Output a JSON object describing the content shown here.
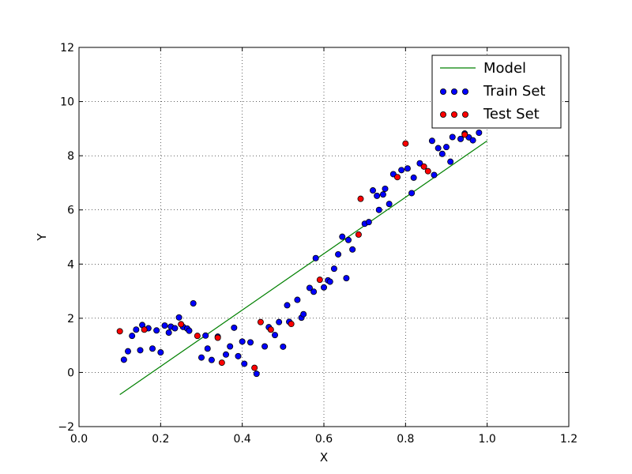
{
  "chart_data": {
    "type": "scatter",
    "xlabel": "X",
    "ylabel": "Y",
    "xlim": [
      0.0,
      1.2
    ],
    "ylim": [
      -2,
      12
    ],
    "x_ticks": [
      0.0,
      0.2,
      0.4,
      0.6,
      0.8,
      1.0,
      1.2
    ],
    "y_ticks": [
      -2,
      0,
      2,
      4,
      6,
      8,
      10,
      12
    ],
    "x_tick_labels": [
      "0.0",
      "0.2",
      "0.4",
      "0.6",
      "0.8",
      "1.0",
      "1.2"
    ],
    "y_tick_labels": [
      "−2",
      "0",
      "2",
      "4",
      "6",
      "8",
      "10",
      "12"
    ],
    "grid": true,
    "legend_position": "top-right",
    "series": [
      {
        "name": "Model",
        "kind": "line",
        "color": "#008000",
        "points": [
          [
            0.1,
            -0.82
          ],
          [
            1.0,
            8.55
          ]
        ]
      },
      {
        "name": "Train Set",
        "kind": "scatter",
        "color": "#0000ff",
        "points": [
          [
            0.11,
            0.47
          ],
          [
            0.12,
            0.78
          ],
          [
            0.13,
            1.35
          ],
          [
            0.14,
            1.58
          ],
          [
            0.15,
            0.82
          ],
          [
            0.155,
            1.75
          ],
          [
            0.17,
            1.63
          ],
          [
            0.18,
            0.88
          ],
          [
            0.19,
            1.55
          ],
          [
            0.2,
            0.74
          ],
          [
            0.21,
            1.73
          ],
          [
            0.22,
            1.47
          ],
          [
            0.225,
            1.69
          ],
          [
            0.235,
            1.63
          ],
          [
            0.245,
            2.03
          ],
          [
            0.255,
            1.68
          ],
          [
            0.265,
            1.62
          ],
          [
            0.27,
            1.54
          ],
          [
            0.28,
            2.55
          ],
          [
            0.3,
            0.55
          ],
          [
            0.31,
            1.36
          ],
          [
            0.315,
            0.88
          ],
          [
            0.325,
            0.46
          ],
          [
            0.34,
            1.32
          ],
          [
            0.36,
            0.66
          ],
          [
            0.37,
            0.96
          ],
          [
            0.38,
            1.65
          ],
          [
            0.39,
            0.6
          ],
          [
            0.4,
            1.14
          ],
          [
            0.405,
            0.32
          ],
          [
            0.42,
            1.11
          ],
          [
            0.435,
            -0.05
          ],
          [
            0.455,
            0.96
          ],
          [
            0.465,
            1.67
          ],
          [
            0.48,
            1.38
          ],
          [
            0.49,
            1.86
          ],
          [
            0.5,
            0.95
          ],
          [
            0.51,
            2.48
          ],
          [
            0.515,
            1.87
          ],
          [
            0.535,
            2.68
          ],
          [
            0.545,
            2.02
          ],
          [
            0.55,
            2.15
          ],
          [
            0.565,
            3.12
          ],
          [
            0.575,
            2.98
          ],
          [
            0.58,
            4.22
          ],
          [
            0.6,
            3.14
          ],
          [
            0.61,
            3.4
          ],
          [
            0.615,
            3.35
          ],
          [
            0.625,
            3.83
          ],
          [
            0.635,
            4.36
          ],
          [
            0.645,
            5.01
          ],
          [
            0.655,
            3.48
          ],
          [
            0.66,
            4.89
          ],
          [
            0.67,
            4.54
          ],
          [
            0.7,
            5.49
          ],
          [
            0.71,
            5.55
          ],
          [
            0.72,
            6.72
          ],
          [
            0.73,
            6.52
          ],
          [
            0.735,
            6.0
          ],
          [
            0.745,
            6.57
          ],
          [
            0.75,
            6.78
          ],
          [
            0.76,
            6.22
          ],
          [
            0.77,
            7.32
          ],
          [
            0.79,
            7.47
          ],
          [
            0.805,
            7.53
          ],
          [
            0.815,
            6.62
          ],
          [
            0.82,
            7.19
          ],
          [
            0.835,
            7.72
          ],
          [
            0.865,
            8.55
          ],
          [
            0.87,
            7.29
          ],
          [
            0.88,
            8.28
          ],
          [
            0.89,
            8.07
          ],
          [
            0.9,
            8.32
          ],
          [
            0.91,
            7.78
          ],
          [
            0.915,
            8.69
          ],
          [
            0.935,
            8.62
          ],
          [
            0.945,
            8.82
          ],
          [
            0.955,
            8.68
          ],
          [
            0.965,
            8.57
          ],
          [
            0.98,
            8.85
          ]
        ]
      },
      {
        "name": "Test Set",
        "kind": "scatter",
        "color": "#ff0000",
        "points": [
          [
            0.1,
            1.52
          ],
          [
            0.16,
            1.58
          ],
          [
            0.25,
            1.78
          ],
          [
            0.29,
            1.35
          ],
          [
            0.34,
            1.28
          ],
          [
            0.35,
            0.36
          ],
          [
            0.43,
            0.17
          ],
          [
            0.445,
            1.86
          ],
          [
            0.47,
            1.58
          ],
          [
            0.52,
            1.79
          ],
          [
            0.59,
            3.42
          ],
          [
            0.685,
            5.09
          ],
          [
            0.69,
            6.41
          ],
          [
            0.78,
            7.21
          ],
          [
            0.8,
            8.45
          ],
          [
            0.845,
            7.6
          ],
          [
            0.855,
            7.43
          ],
          [
            0.945,
            8.78
          ]
        ]
      }
    ]
  }
}
